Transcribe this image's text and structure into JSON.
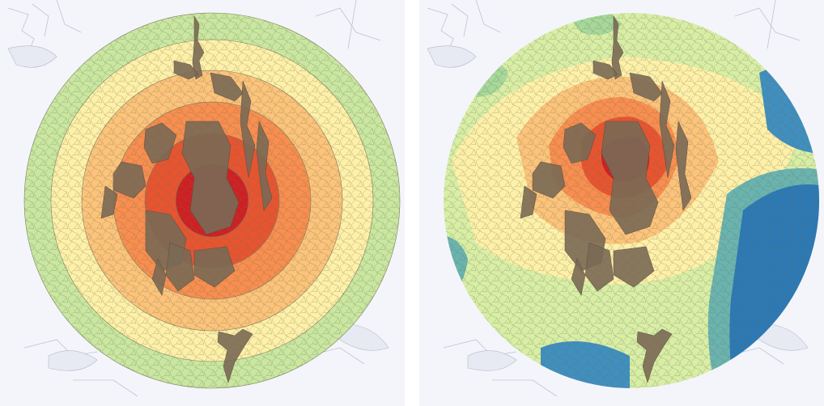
{
  "maps": [
    {
      "id": "distance-rings",
      "palette": [
        "#cf1f22",
        "#e8542f",
        "#f88e4f",
        "#fcc37a",
        "#fef0a8",
        "#c9e7a0"
      ],
      "bands": 6
    },
    {
      "id": "travel-time",
      "palette": [
        "#cf1f22",
        "#e8542f",
        "#f88e4f",
        "#fcc37a",
        "#fef0a8",
        "#d8eea5",
        "#a6d89a",
        "#6ab4b0",
        "#3f8fc0",
        "#2b79b6"
      ]
    }
  ],
  "colors": {
    "water": "#f4f5fb",
    "coastline": "#9aa1b8",
    "cell_edge": "#6f6f55",
    "city_patches": "#7a6a55"
  }
}
